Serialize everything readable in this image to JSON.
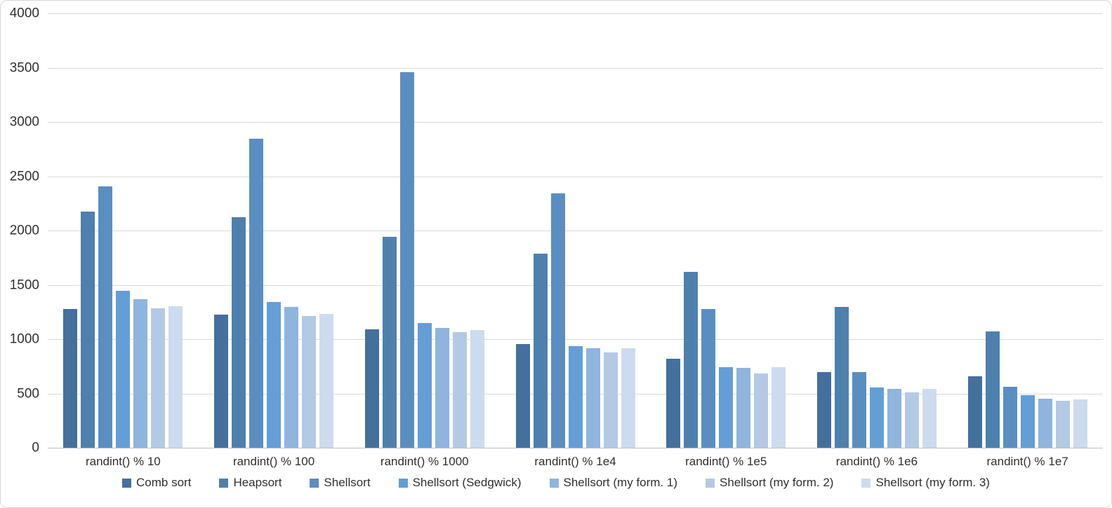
{
  "figure": {
    "background": "#ffffff",
    "border_color": "#d7d7d7",
    "gridline_color": "#d9d9d9",
    "axis_line_color": "#bfbfbf",
    "text_color": "#303030"
  },
  "chart_data": {
    "type": "bar",
    "title": "",
    "xlabel": "",
    "ylabel": "",
    "ylim": [
      0,
      4000
    ],
    "ytick_step": 500,
    "grid": true,
    "legend_position": "bottom",
    "y_tick_labels": [
      "0",
      "500",
      "1000",
      "1500",
      "2000",
      "2500",
      "3000",
      "3500",
      "4000"
    ],
    "categories": [
      "randint() % 10",
      "randint() % 100",
      "randint() % 1000",
      "randint() % 1e4",
      "randint() % 1e5",
      "randint() % 1e6",
      "randint() % 1e7"
    ],
    "series": [
      {
        "name": "Comb sort",
        "color": "#44709d",
        "values": [
          1280,
          1225,
          1090,
          955,
          820,
          695,
          655
        ]
      },
      {
        "name": "Heapsort",
        "color": "#4e80ae",
        "values": [
          2175,
          2125,
          1940,
          1785,
          1620,
          1300,
          1070
        ]
      },
      {
        "name": "Shellsort",
        "color": "#5b8ec0",
        "values": [
          2405,
          2845,
          3455,
          2340,
          1280,
          700,
          560
        ]
      },
      {
        "name": "Shellsort (Sedgwick)",
        "color": "#649ed6",
        "values": [
          1445,
          1340,
          1150,
          935,
          740,
          555,
          485
        ]
      },
      {
        "name": "Shellsort (my form. 1)",
        "color": "#8fb4de",
        "values": [
          1365,
          1295,
          1105,
          915,
          735,
          545,
          450
        ]
      },
      {
        "name": "Shellsort (my form. 2)",
        "color": "#b4c9e4",
        "values": [
          1285,
          1215,
          1065,
          875,
          685,
          510,
          435
        ]
      },
      {
        "name": "Shellsort (my form. 3)",
        "color": "#cddbee",
        "values": [
          1305,
          1230,
          1085,
          915,
          740,
          540,
          445
        ]
      }
    ]
  }
}
